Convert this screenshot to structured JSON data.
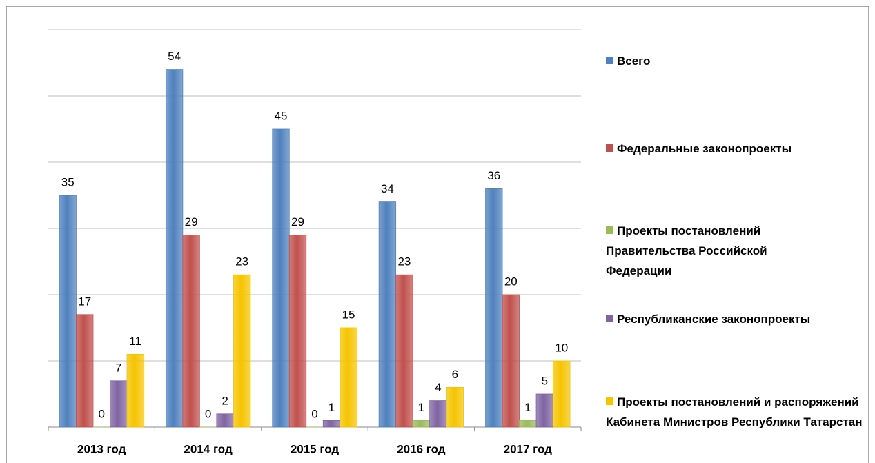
{
  "chart_data": {
    "type": "bar",
    "categories": [
      "2013 год",
      "2014 год",
      "2015 год",
      "2016 год",
      "2017 год"
    ],
    "series": [
      {
        "name": "Всего",
        "color": "#4f81bd",
        "values": [
          35,
          54,
          45,
          34,
          36
        ]
      },
      {
        "name": "Федеральные законопроекты",
        "color": "#c0504d",
        "values": [
          17,
          29,
          29,
          23,
          20
        ]
      },
      {
        "name": "Проекты постановлений Правительства Российской Федерации",
        "color": "#9bbb59",
        "values": [
          0,
          0,
          0,
          1,
          1
        ]
      },
      {
        "name": "Республиканские законопроекты",
        "color": "#8064a2",
        "values": [
          7,
          2,
          1,
          4,
          5
        ]
      },
      {
        "name": "Проекты постановлений и распоряжений Кабинета Министров Республики Татарстан",
        "color": "#f5c400",
        "values": [
          11,
          23,
          15,
          6,
          10
        ]
      }
    ],
    "ylim": [
      0,
      60
    ],
    "yticks": [
      0,
      10,
      20,
      30,
      40,
      50,
      60
    ],
    "grid": true,
    "legend": "right"
  }
}
